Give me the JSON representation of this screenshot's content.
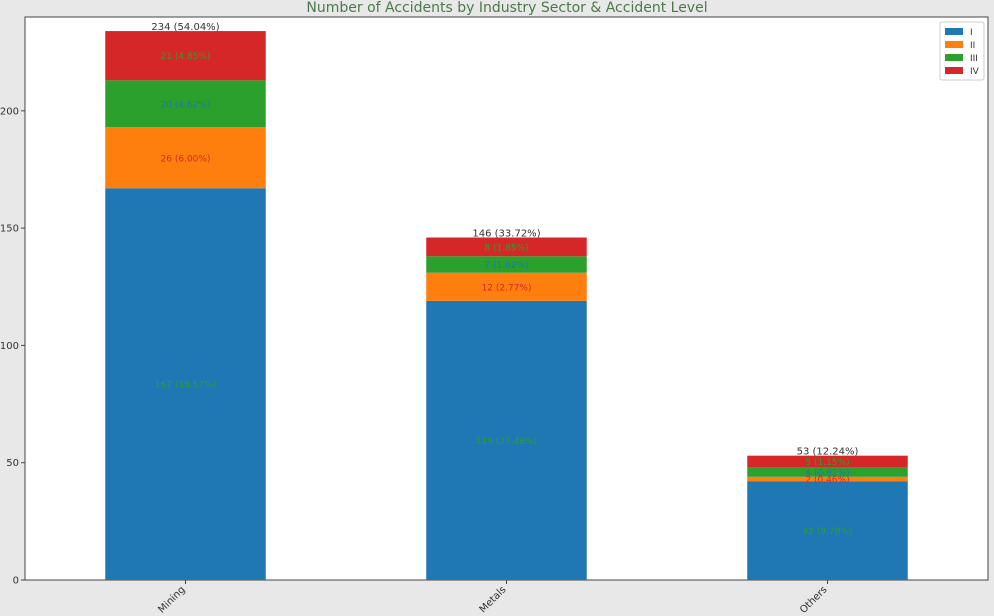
{
  "chart_data": {
    "type": "bar",
    "stacked": true,
    "title": "Number of Accidents by Industry Sector & Accident Level",
    "xlabel": "",
    "ylabel": "",
    "ylim": [
      0,
      240
    ],
    "yticks": [
      0,
      50,
      100,
      150,
      200
    ],
    "grid": false,
    "legend_position": "top-right",
    "categories": [
      "Mining",
      "Metals",
      "Others"
    ],
    "series": [
      {
        "name": "I",
        "color": "#1f77b4",
        "values": [
          167,
          119,
          42
        ],
        "labels": [
          "167 (38.57%)",
          "119 (27.48%)",
          "42 (9.70%)"
        ],
        "label_color": "#2ca02c"
      },
      {
        "name": "II",
        "color": "#ff7f0e",
        "values": [
          26,
          12,
          2
        ],
        "labels": [
          "26 (6.00%)",
          "12 (2.77%)",
          "2 (0.46%)"
        ],
        "label_color": "#d62728"
      },
      {
        "name": "III",
        "color": "#2ca02c",
        "values": [
          20,
          7,
          4
        ],
        "labels": [
          "20 (4.62%)",
          "7 (1.62%)",
          "4 (0.92%)"
        ],
        "label_color": "#1f77b4"
      },
      {
        "name": "IV",
        "color": "#d62728",
        "values": [
          21,
          8,
          5
        ],
        "labels": [
          "21 (4.85%)",
          "8 (1.85%)",
          "5 (1.15%)"
        ],
        "label_color": "#2ca02c"
      }
    ],
    "totals": [
      234,
      146,
      53
    ],
    "total_labels": [
      "234 (54.04%)",
      "146 (33.72%)",
      "53 (12.24%)"
    ],
    "title_color": "#4a7a4a",
    "total_label_color": "#333333"
  }
}
